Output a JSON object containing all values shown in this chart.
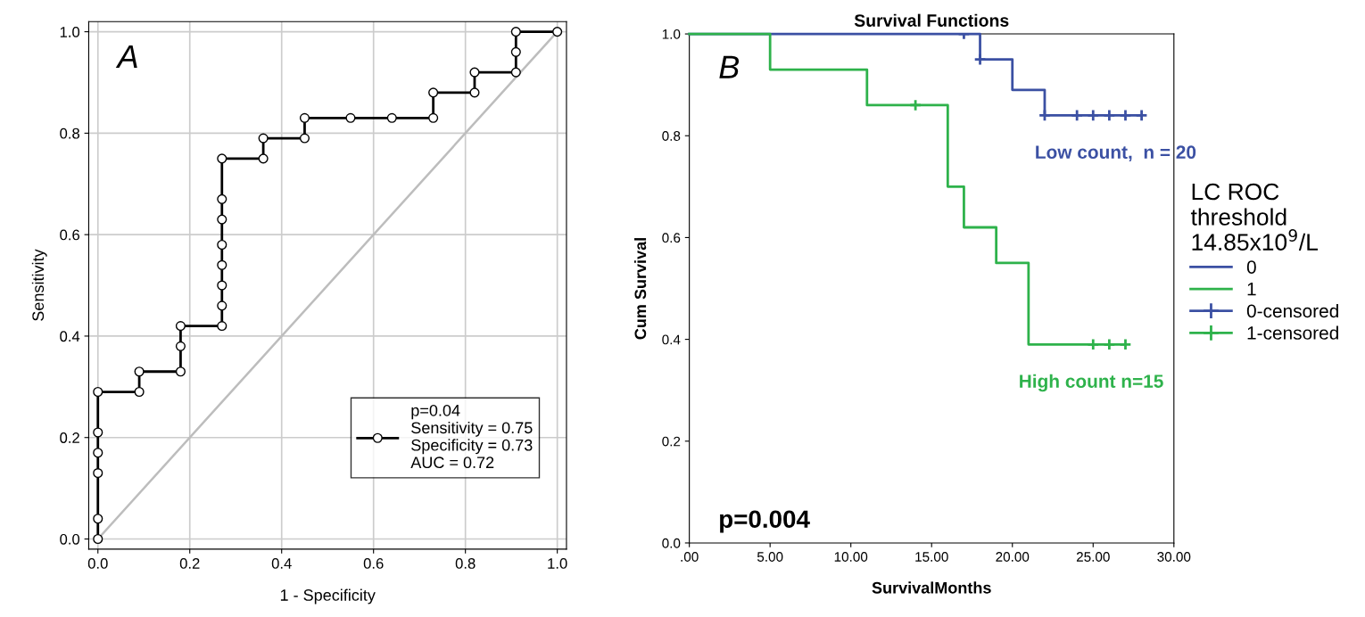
{
  "chart_data": [
    {
      "type": "line",
      "xlabel": "1 - Specificity",
      "ylabel": "Sensitivity",
      "xlim": [
        -0.02,
        1.02
      ],
      "ylim": [
        -0.02,
        1.02
      ],
      "xticks": [
        {
          "value": 0,
          "label": "0.0"
        },
        {
          "value": 0.2,
          "label": "0.2"
        },
        {
          "value": 0.4,
          "label": "0.4"
        },
        {
          "value": 0.6,
          "label": "0.6"
        },
        {
          "value": 0.8,
          "label": "0.8"
        },
        {
          "value": 1,
          "label": "1.0"
        }
      ],
      "yticks": [
        {
          "value": 0,
          "label": "0.0"
        },
        {
          "value": 0.2,
          "label": "0.2"
        },
        {
          "value": 0.4,
          "label": "0.4"
        },
        {
          "value": 0.6,
          "label": "0.6"
        },
        {
          "value": 0.8,
          "label": "0.8"
        },
        {
          "value": 1,
          "label": "1.0"
        }
      ],
      "grid": true,
      "legend": "bottom right",
      "series": [
        {
          "name": "p=0.04\nSensitivity = 0.75\nSpecificity = 0.73\nAUC = 0.72",
          "color": "#000000",
          "marker": "circle",
          "x": [
            0,
            0,
            0,
            0,
            0,
            0,
            0.09,
            0.09,
            0.18,
            0.18,
            0.18,
            0.27,
            0.27,
            0.27,
            0.27,
            0.27,
            0.27,
            0.27,
            0.27,
            0.36,
            0.36,
            0.45,
            0.45,
            0.55,
            0.64,
            0.73,
            0.73,
            0.82,
            0.82,
            0.91,
            0.91,
            0.91,
            1
          ],
          "values": [
            0,
            0.04,
            0.13,
            0.17,
            0.21,
            0.29,
            0.29,
            0.33,
            0.33,
            0.38,
            0.42,
            0.42,
            0.46,
            0.5,
            0.54,
            0.58,
            0.63,
            0.67,
            0.75,
            0.75,
            0.79,
            0.79,
            0.83,
            0.83,
            0.83,
            0.83,
            0.88,
            0.88,
            0.92,
            0.92,
            0.96,
            1,
            1
          ]
        },
        {
          "color": "#bdbdbd",
          "marker": "none",
          "x": [
            0,
            1
          ],
          "values": [
            0,
            1
          ]
        }
      ],
      "annotations": [
        "A"
      ]
    },
    {
      "type": "step",
      "title": "Survival Functions",
      "xlabel": "SurvivalMonths",
      "ylabel": "Cum Survival",
      "xlim": [
        0,
        30
      ],
      "ylim": [
        0,
        1
      ],
      "xticks": [
        {
          "value": 0,
          "label": ".00"
        },
        {
          "value": 5,
          "label": "5.00"
        },
        {
          "value": 10,
          "label": "10.00"
        },
        {
          "value": 15,
          "label": "15.00"
        },
        {
          "value": 20,
          "label": "20.00"
        },
        {
          "value": 25,
          "label": "25.00"
        },
        {
          "value": 30,
          "label": "30.00"
        }
      ],
      "yticks": [
        {
          "value": 0,
          "label": "0.0"
        },
        {
          "value": 0.2,
          "label": "0.2"
        },
        {
          "value": 0.4,
          "label": "0.4"
        },
        {
          "value": 0.6,
          "label": "0.6"
        },
        {
          "value": 0.8,
          "label": "0.8"
        },
        {
          "value": 1,
          "label": "1.0"
        }
      ],
      "legend": "right",
      "legend_title": "LC ROC\nthreshold\n14.85x10$^{9}$/L",
      "series": [
        {
          "name": "0",
          "color": "#3b50a3",
          "x": [
            0,
            18,
            20,
            22,
            28
          ],
          "values": [
            1,
            0.95,
            0.89,
            0.84,
            0.84
          ]
        },
        {
          "name": "1",
          "color": "#2eb24b",
          "x": [
            0,
            5,
            11,
            16,
            17,
            19,
            21,
            27
          ],
          "values": [
            1,
            0.93,
            0.86,
            0.7,
            0.62,
            0.55,
            0.39,
            0.39
          ]
        },
        {
          "name": "0-censored",
          "type": "scatter",
          "marker": "cross",
          "color": "#3b50a3",
          "x": [
            17,
            18,
            22,
            24,
            25,
            26,
            27,
            28
          ],
          "values": [
            1,
            0.95,
            0.84,
            0.84,
            0.84,
            0.84,
            0.84,
            0.84
          ]
        },
        {
          "name": "1-censored",
          "type": "scatter",
          "marker": "cross",
          "color": "#2eb24b",
          "x": [
            14,
            25,
            26,
            27
          ],
          "values": [
            0.86,
            0.39,
            0.39,
            0.39
          ]
        }
      ],
      "annotations": [
        "B",
        "p=0.004",
        {
          "text": "Low count,  n = 20",
          "x": 22,
          "y": 0.84
        },
        {
          "text": "High count n=15",
          "x": 21,
          "y": 0.39
        }
      ]
    }
  ]
}
